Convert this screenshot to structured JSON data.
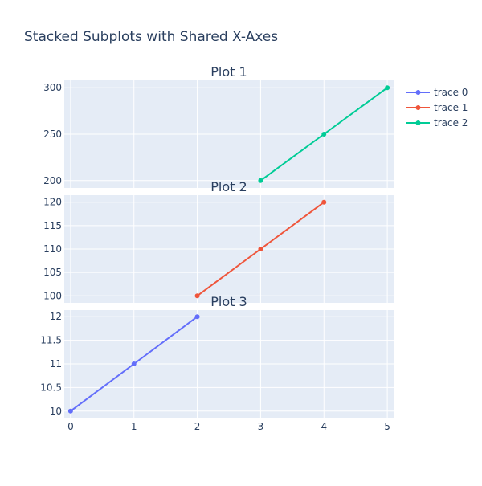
{
  "chart_data": {
    "type": "line",
    "title": "Stacked Subplots with Shared X-Axes",
    "shared_x": {
      "range": [
        -0.1,
        5.1
      ],
      "ticks": [
        0,
        1,
        2,
        3,
        4,
        5
      ]
    },
    "grid": true,
    "legend_placement": "top-right",
    "subplots": [
      {
        "title": "Plot 1",
        "series_index": 2,
        "ylim": [
          192,
          308
        ],
        "yticks": [
          200,
          250,
          300
        ],
        "ytick_labels": [
          "200",
          "250",
          "300"
        ]
      },
      {
        "title": "Plot 2",
        "series_index": 1,
        "ylim": [
          98.5,
          121.5
        ],
        "yticks": [
          100,
          105,
          110,
          115,
          120
        ],
        "ytick_labels": [
          "100",
          "105",
          "110",
          "115",
          "120"
        ]
      },
      {
        "title": "Plot 3",
        "series_index": 0,
        "ylim": [
          9.86,
          12.14
        ],
        "yticks": [
          10,
          10.5,
          11,
          11.5,
          12
        ],
        "ytick_labels": [
          "10",
          "10.5",
          "11",
          "11.5",
          "12"
        ]
      }
    ],
    "series": [
      {
        "name": "trace 0",
        "color": "#636efa",
        "x": [
          0,
          1,
          2
        ],
        "y": [
          10,
          11,
          12
        ]
      },
      {
        "name": "trace 1",
        "color": "#EF553B",
        "x": [
          2,
          3,
          4
        ],
        "y": [
          100,
          110,
          120
        ]
      },
      {
        "name": "trace 2",
        "color": "#00cc96",
        "x": [
          3,
          4,
          5
        ],
        "y": [
          200,
          250,
          300
        ]
      }
    ]
  }
}
